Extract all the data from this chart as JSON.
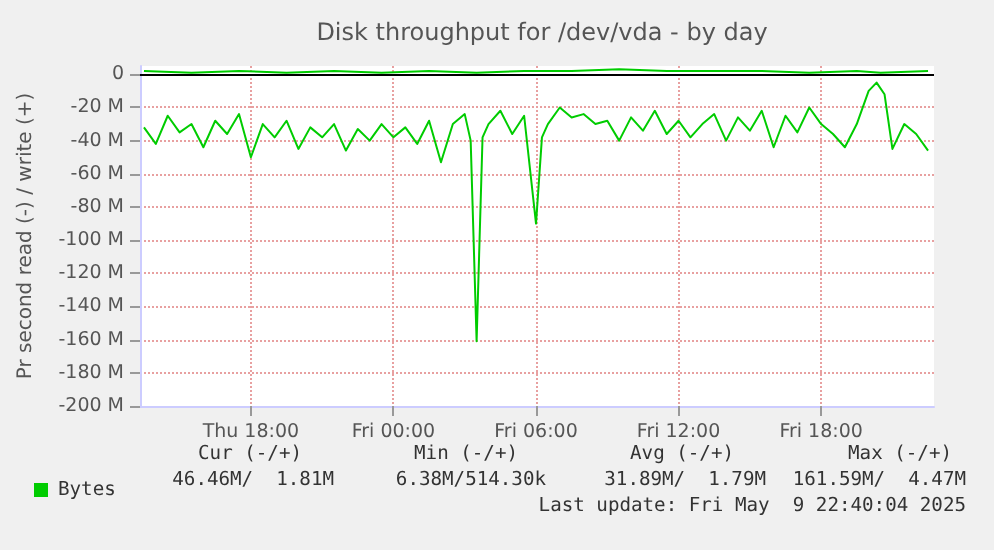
{
  "chart_data": {
    "type": "line",
    "title": "Disk throughput for /dev/vda - by day",
    "ylabel": "Pr second read (-) / write (+)",
    "xlim": [
      "2025-05-08T13:20",
      "2025-05-09T22:45"
    ],
    "ylim": [
      -200,
      5
    ],
    "xticks": [
      {
        "value": "2025-05-08T18:00",
        "label": "Thu 18:00"
      },
      {
        "value": "2025-05-09T00:00",
        "label": "Fri 00:00"
      },
      {
        "value": "2025-05-09T06:00",
        "label": "Fri 06:00"
      },
      {
        "value": "2025-05-09T12:00",
        "label": "Fri 12:00"
      },
      {
        "value": "2025-05-09T18:00",
        "label": "Fri 18:00"
      }
    ],
    "yticks": [
      {
        "value": 0,
        "label": "0"
      },
      {
        "value": -20,
        "label": "-20 M"
      },
      {
        "value": -40,
        "label": "-40 M"
      },
      {
        "value": -60,
        "label": "-60 M"
      },
      {
        "value": -80,
        "label": "-80 M"
      },
      {
        "value": -100,
        "label": "-100 M"
      },
      {
        "value": -120,
        "label": "-120 M"
      },
      {
        "value": -140,
        "label": "-140 M"
      },
      {
        "value": -160,
        "label": "-160 M"
      },
      {
        "value": -180,
        "label": "-180 M"
      },
      {
        "value": -200,
        "label": "-200 M"
      }
    ],
    "series": [
      {
        "name": "Bytes",
        "color": "#00cc00",
        "x": [
          "2025-05-08T13:30",
          "2025-05-08T14:00",
          "2025-05-08T14:30",
          "2025-05-08T15:00",
          "2025-05-08T15:30",
          "2025-05-08T16:00",
          "2025-05-08T16:30",
          "2025-05-08T17:00",
          "2025-05-08T17:30",
          "2025-05-08T18:00",
          "2025-05-08T18:30",
          "2025-05-08T19:00",
          "2025-05-08T19:30",
          "2025-05-08T20:00",
          "2025-05-08T20:30",
          "2025-05-08T21:00",
          "2025-05-08T21:30",
          "2025-05-08T22:00",
          "2025-05-08T22:30",
          "2025-05-08T23:00",
          "2025-05-08T23:30",
          "2025-05-09T00:00",
          "2025-05-09T00:30",
          "2025-05-09T01:00",
          "2025-05-09T01:30",
          "2025-05-09T02:00",
          "2025-05-09T02:30",
          "2025-05-09T03:00",
          "2025-05-09T03:15",
          "2025-05-09T03:30",
          "2025-05-09T03:45",
          "2025-05-09T04:00",
          "2025-05-09T04:30",
          "2025-05-09T05:00",
          "2025-05-09T05:30",
          "2025-05-09T06:00",
          "2025-05-09T06:15",
          "2025-05-09T06:30",
          "2025-05-09T07:00",
          "2025-05-09T07:30",
          "2025-05-09T08:00",
          "2025-05-09T08:30",
          "2025-05-09T09:00",
          "2025-05-09T09:30",
          "2025-05-09T10:00",
          "2025-05-09T10:30",
          "2025-05-09T11:00",
          "2025-05-09T11:30",
          "2025-05-09T12:00",
          "2025-05-09T12:30",
          "2025-05-09T13:00",
          "2025-05-09T13:30",
          "2025-05-09T14:00",
          "2025-05-09T14:30",
          "2025-05-09T15:00",
          "2025-05-09T15:30",
          "2025-05-09T16:00",
          "2025-05-09T16:30",
          "2025-05-09T17:00",
          "2025-05-09T17:30",
          "2025-05-09T18:00",
          "2025-05-09T18:30",
          "2025-05-09T19:00",
          "2025-05-09T19:30",
          "2025-05-09T20:00",
          "2025-05-09T20:20",
          "2025-05-09T20:40",
          "2025-05-09T21:00",
          "2025-05-09T21:30",
          "2025-05-09T22:00",
          "2025-05-09T22:30"
        ],
        "values": [
          -32,
          -42,
          -25,
          -35,
          -30,
          -44,
          -28,
          -36,
          -24,
          -50,
          -30,
          -38,
          -28,
          -45,
          -32,
          -38,
          -30,
          -46,
          -33,
          -40,
          -30,
          -38,
          -32,
          -42,
          -28,
          -53,
          -30,
          -24,
          -40,
          -161,
          -38,
          -30,
          -22,
          -36,
          -25,
          -90,
          -38,
          -30,
          -20,
          -26,
          -24,
          -30,
          -28,
          -40,
          -26,
          -34,
          -22,
          -36,
          -28,
          -38,
          -30,
          -24,
          -40,
          -26,
          -34,
          -22,
          -44,
          -25,
          -35,
          -20,
          -30,
          -36,
          -44,
          -30,
          -10,
          -5,
          -12,
          -45,
          -30,
          -36,
          -46
        ]
      },
      {
        "color": "#00cc00",
        "x": [
          "2025-05-08T13:30",
          "2025-05-08T15:30",
          "2025-05-08T17:30",
          "2025-05-08T19:30",
          "2025-05-08T21:30",
          "2025-05-08T23:30",
          "2025-05-09T01:30",
          "2025-05-09T03:30",
          "2025-05-09T05:30",
          "2025-05-09T07:30",
          "2025-05-09T09:30",
          "2025-05-09T11:30",
          "2025-05-09T13:30",
          "2025-05-09T15:30",
          "2025-05-09T17:30",
          "2025-05-09T19:30",
          "2025-05-09T20:30",
          "2025-05-09T22:30"
        ],
        "values": [
          2,
          1,
          2,
          1,
          2,
          1,
          2,
          1,
          2,
          2,
          3,
          2,
          2,
          2,
          1,
          2,
          1,
          2
        ]
      }
    ],
    "ref_lines": [
      {
        "axis": "y",
        "value": 0,
        "color": "#000000"
      }
    ],
    "grid": true,
    "legend": "bottom left",
    "marker": "none",
    "line_style": "solid",
    "annotations": [
      "Cur (-/+)",
      "Min (-/+)",
      "Avg (-/+)",
      "Max (-/+)",
      "46.46M/  1.81M",
      "6.38M/514.30k",
      "31.89M/  1.79M",
      "161.59M/  4.47M",
      "Last update: Fri May  9 22:40:04 2025"
    ]
  }
}
